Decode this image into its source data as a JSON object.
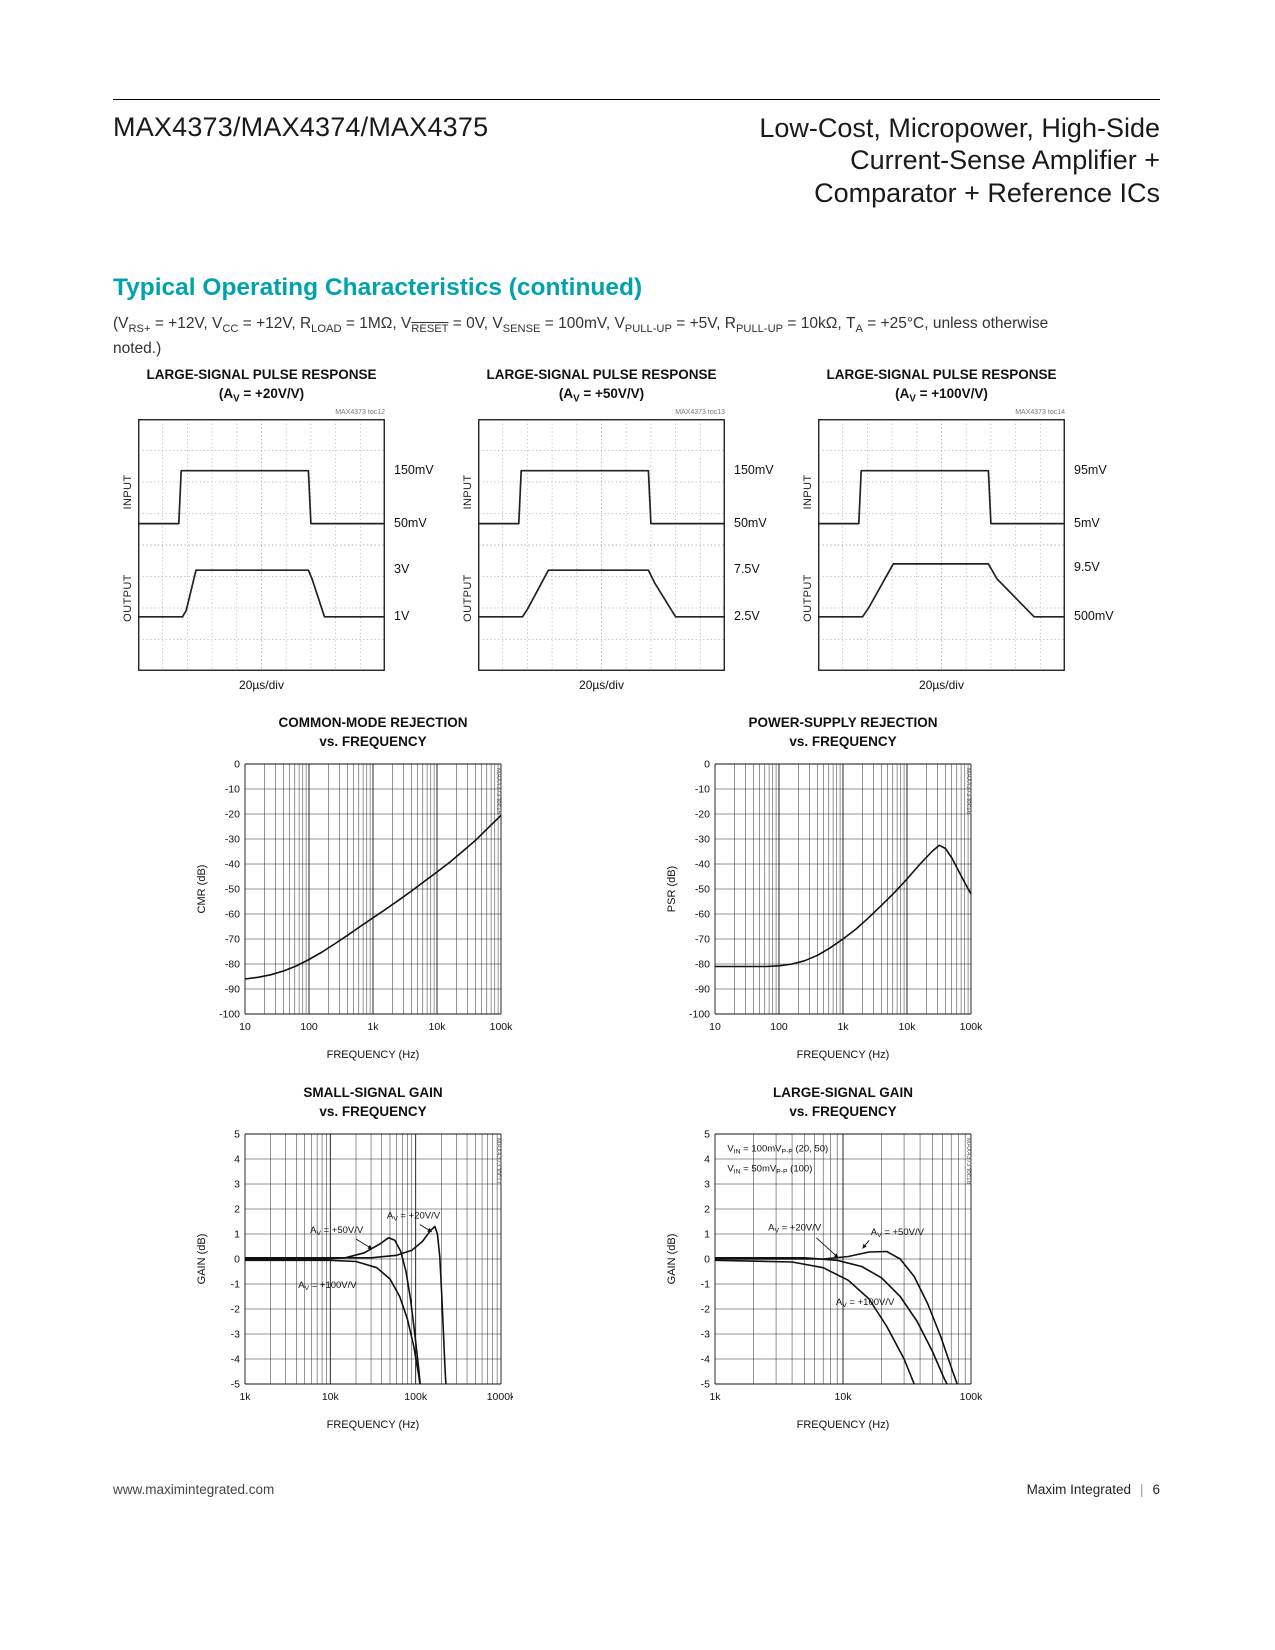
{
  "header": {
    "part": "MAX4373/MAX4374/MAX4375",
    "title_lines": [
      "Low-Cost, Micropower, High-Side",
      "Current-Sense Amplifier +",
      "Comparator + Reference ICs"
    ]
  },
  "section": {
    "heading": "Typical Operating Characteristics (continued)",
    "conditions": "(V|RS+| = +12V, V|CC| = +12V, R|LOAD| = 1MΩ, V~RESET~ = 0V, V|SENSE| = 100mV, V|PULL-UP| = +5V, R|PULL-UP| = 10kΩ, T|A| = +25°C, unless otherwise noted.)"
  },
  "footer": {
    "left": "www.maximintegrated.com",
    "brand": "Maxim Integrated",
    "divider": "|",
    "page": "6"
  },
  "chart_data": [
    {
      "type": "scope",
      "toc": "MAX4373 toc12",
      "title": "LARGE-SIGNAL PULSE RESPONSE",
      "subtitle": "(A|V| = +20V/V)",
      "x_div_label": "20µs/div",
      "divisions": {
        "x": 10,
        "y": 8
      },
      "trace_labels": [
        {
          "text": "INPUT",
          "y": 0.29
        },
        {
          "text": "OUTPUT",
          "y": 0.71
        }
      ],
      "right_labels": [
        {
          "text": "150mV",
          "y": 0.205
        },
        {
          "text": "50mV",
          "y": 0.415
        },
        {
          "text": "3V",
          "y": 0.6
        },
        {
          "text": "1V",
          "y": 0.785
        }
      ],
      "traces": [
        {
          "name": "input",
          "points": [
            [
              0,
              0.415
            ],
            [
              0.165,
              0.415
            ],
            [
              0.175,
              0.205
            ],
            [
              0.69,
              0.205
            ],
            [
              0.7,
              0.415
            ],
            [
              1,
              0.415
            ]
          ]
        },
        {
          "name": "output",
          "points": [
            [
              0,
              0.785
            ],
            [
              0.18,
              0.785
            ],
            [
              0.195,
              0.76
            ],
            [
              0.235,
              0.6
            ],
            [
              0.69,
              0.6
            ],
            [
              0.705,
              0.635
            ],
            [
              0.755,
              0.785
            ],
            [
              1,
              0.785
            ]
          ]
        }
      ]
    },
    {
      "type": "scope",
      "toc": "MAX4373 toc13",
      "title": "LARGE-SIGNAL PULSE RESPONSE",
      "subtitle": "(A|V| = +50V/V)",
      "x_div_label": "20µs/div",
      "divisions": {
        "x": 10,
        "y": 8
      },
      "trace_labels": [
        {
          "text": "INPUT",
          "y": 0.29
        },
        {
          "text": "OUTPUT",
          "y": 0.71
        }
      ],
      "right_labels": [
        {
          "text": "150mV",
          "y": 0.205
        },
        {
          "text": "50mV",
          "y": 0.415
        },
        {
          "text": "7.5V",
          "y": 0.6
        },
        {
          "text": "2.5V",
          "y": 0.785
        }
      ],
      "traces": [
        {
          "name": "input",
          "points": [
            [
              0,
              0.415
            ],
            [
              0.165,
              0.415
            ],
            [
              0.175,
              0.205
            ],
            [
              0.69,
              0.205
            ],
            [
              0.7,
              0.415
            ],
            [
              1,
              0.415
            ]
          ]
        },
        {
          "name": "output",
          "points": [
            [
              0,
              0.785
            ],
            [
              0.18,
              0.785
            ],
            [
              0.2,
              0.755
            ],
            [
              0.285,
              0.6
            ],
            [
              0.69,
              0.6
            ],
            [
              0.715,
              0.65
            ],
            [
              0.8,
              0.785
            ],
            [
              1,
              0.785
            ]
          ]
        }
      ]
    },
    {
      "type": "scope",
      "toc": "MAX4373 toc14",
      "title": "LARGE-SIGNAL PULSE RESPONSE",
      "subtitle": "(A|V| = +100V/V)",
      "x_div_label": "20µs/div",
      "divisions": {
        "x": 10,
        "y": 8
      },
      "trace_labels": [
        {
          "text": "INPUT",
          "y": 0.29
        },
        {
          "text": "OUTPUT",
          "y": 0.71
        }
      ],
      "right_labels": [
        {
          "text": "95mV",
          "y": 0.205
        },
        {
          "text": "5mV",
          "y": 0.415
        },
        {
          "text": "9.5V",
          "y": 0.59
        },
        {
          "text": "500mV",
          "y": 0.785
        }
      ],
      "traces": [
        {
          "name": "input",
          "points": [
            [
              0,
              0.415
            ],
            [
              0.165,
              0.415
            ],
            [
              0.175,
              0.205
            ],
            [
              0.69,
              0.205
            ],
            [
              0.7,
              0.415
            ],
            [
              1,
              0.415
            ]
          ]
        },
        {
          "name": "output",
          "points": [
            [
              0,
              0.785
            ],
            [
              0.18,
              0.785
            ],
            [
              0.205,
              0.75
            ],
            [
              0.305,
              0.575
            ],
            [
              0.69,
              0.575
            ],
            [
              0.725,
              0.635
            ],
            [
              0.875,
              0.785
            ],
            [
              1,
              0.785
            ]
          ]
        }
      ]
    },
    {
      "type": "line",
      "toc": "MAX4373 toc15",
      "title": "COMMON-MODE REJECTION",
      "subtitle": "vs. FREQUENCY",
      "xlabel": "FREQUENCY (Hz)",
      "ylabel": "CMR (dB)",
      "x_log_range": [
        1,
        5
      ],
      "x_ticks": [
        "10",
        "100",
        "1k",
        "10k",
        "100k"
      ],
      "ylim": [
        -100,
        0
      ],
      "y_step": 10,
      "y_ticks": [
        "0",
        "-10",
        "-20",
        "-30",
        "-40",
        "-50",
        "-60",
        "-70",
        "-80",
        "-90",
        "-100"
      ],
      "series": [
        {
          "name": "cmr",
          "points": [
            [
              10,
              -86
            ],
            [
              16,
              -85.3
            ],
            [
              25,
              -84.3
            ],
            [
              40,
              -82.8
            ],
            [
              63,
              -80.8
            ],
            [
              100,
              -78.2
            ],
            [
              160,
              -75.2
            ],
            [
              250,
              -72
            ],
            [
              400,
              -68.5
            ],
            [
              630,
              -65
            ],
            [
              1000,
              -61.5
            ],
            [
              1600,
              -58
            ],
            [
              2500,
              -54.5
            ],
            [
              4000,
              -50.8
            ],
            [
              6300,
              -47
            ],
            [
              10000,
              -43.2
            ],
            [
              16000,
              -39.2
            ],
            [
              25000,
              -35
            ],
            [
              40000,
              -30.5
            ],
            [
              63000,
              -25.5
            ],
            [
              100000,
              -20.5
            ]
          ]
        }
      ],
      "annotations": []
    },
    {
      "type": "line",
      "toc": "MAX4373 toc16",
      "title": "POWER-SUPPLY REJECTION",
      "subtitle": "vs. FREQUENCY",
      "xlabel": "FREQUENCY (Hz)",
      "ylabel": "PSR (dB)",
      "x_log_range": [
        1,
        5
      ],
      "x_ticks": [
        "10",
        "100",
        "1k",
        "10k",
        "100k"
      ],
      "ylim": [
        -100,
        0
      ],
      "y_step": 10,
      "y_ticks": [
        "0",
        "-10",
        "-20",
        "-30",
        "-40",
        "-50",
        "-60",
        "-70",
        "-80",
        "-90",
        "-100"
      ],
      "series": [
        {
          "name": "psr",
          "points": [
            [
              10,
              -81
            ],
            [
              25,
              -81
            ],
            [
              63,
              -81
            ],
            [
              100,
              -80.7
            ],
            [
              160,
              -80
            ],
            [
              250,
              -78.7
            ],
            [
              400,
              -76.5
            ],
            [
              630,
              -73.5
            ],
            [
              1000,
              -70
            ],
            [
              1600,
              -66
            ],
            [
              2500,
              -61.5
            ],
            [
              4000,
              -56.5
            ],
            [
              6300,
              -51.5
            ],
            [
              10000,
              -46
            ],
            [
              16000,
              -40
            ],
            [
              25000,
              -34.8
            ],
            [
              32000,
              -32.5
            ],
            [
              40000,
              -33.8
            ],
            [
              50000,
              -37.5
            ],
            [
              63000,
              -42.5
            ],
            [
              80000,
              -47.5
            ],
            [
              100000,
              -52
            ]
          ]
        }
      ],
      "annotations": []
    },
    {
      "type": "line",
      "toc": "MAX4373 toc17",
      "title": "SMALL-SIGNAL GAIN",
      "subtitle": "vs. FREQUENCY",
      "xlabel": "FREQUENCY (Hz)",
      "ylabel": "GAIN (dB)",
      "x_log_range": [
        3,
        6
      ],
      "x_ticks": [
        "1k",
        "10k",
        "100k",
        "1000k"
      ],
      "ylim": [
        -5,
        5
      ],
      "y_step": 1,
      "y_ticks": [
        "5",
        "4",
        "3",
        "2",
        "1",
        "0",
        "-1",
        "-2",
        "-3",
        "-4",
        "-5"
      ],
      "series": [
        {
          "name": "av20",
          "points": [
            [
              1000,
              0.05
            ],
            [
              10000,
              0.05
            ],
            [
              30000,
              0.05
            ],
            [
              60000,
              0.15
            ],
            [
              90000,
              0.35
            ],
            [
              120000,
              0.7
            ],
            [
              150000,
              1.15
            ],
            [
              168000,
              1.3
            ],
            [
              180000,
              1.0
            ],
            [
              192000,
              0.1
            ],
            [
              202000,
              -1.4
            ],
            [
              212000,
              -3
            ],
            [
              220000,
              -4.3
            ],
            [
              226000,
              -5
            ]
          ]
        },
        {
          "name": "av50",
          "points": [
            [
              1000,
              0
            ],
            [
              8000,
              0
            ],
            [
              15000,
              0.05
            ],
            [
              25000,
              0.25
            ],
            [
              38000,
              0.6
            ],
            [
              48000,
              0.85
            ],
            [
              57000,
              0.75
            ],
            [
              67000,
              0.3
            ],
            [
              77000,
              -0.5
            ],
            [
              87000,
              -1.6
            ],
            [
              97000,
              -2.9
            ],
            [
              107000,
              -4.2
            ],
            [
              113000,
              -5
            ]
          ]
        },
        {
          "name": "av100",
          "points": [
            [
              1000,
              -0.05
            ],
            [
              10000,
              -0.05
            ],
            [
              20000,
              -0.1
            ],
            [
              35000,
              -0.35
            ],
            [
              50000,
              -0.8
            ],
            [
              65000,
              -1.5
            ],
            [
              80000,
              -2.4
            ],
            [
              95000,
              -3.5
            ],
            [
              108000,
              -4.6
            ],
            [
              112000,
              -5
            ]
          ]
        }
      ],
      "annotations": [
        {
          "text": "A|V| = +50V/V",
          "x": 5800,
          "y": 1.05,
          "arrow": [
            [
              20000,
              0.8
            ],
            [
              31000,
              0.4
            ]
          ]
        },
        {
          "text": "A|V| = +20V/V",
          "x": 46000,
          "y": 1.62,
          "arrow": [
            [
              112000,
              1.38
            ],
            [
              155000,
              1.08
            ]
          ]
        },
        {
          "text": "A|V| = +100V/V",
          "x": 4200,
          "y": -1.15
        }
      ]
    },
    {
      "type": "line",
      "toc": "MAX4373 toc18",
      "title": "LARGE-SIGNAL GAIN",
      "subtitle": "vs. FREQUENCY",
      "xlabel": "FREQUENCY (Hz)",
      "ylabel": "GAIN (dB)",
      "x_log_range": [
        3,
        5
      ],
      "x_ticks": [
        "1k",
        "10k",
        "100k"
      ],
      "ylim": [
        -5,
        5
      ],
      "y_step": 1,
      "y_ticks": [
        "5",
        "4",
        "3",
        "2",
        "1",
        "0",
        "-1",
        "-2",
        "-3",
        "-4",
        "-5"
      ],
      "series": [
        {
          "name": "av20",
          "points": [
            [
              1000,
              0.05
            ],
            [
              5000,
              0.05
            ],
            [
              9000,
              -0.05
            ],
            [
              14000,
              -0.3
            ],
            [
              20000,
              -0.75
            ],
            [
              28000,
              -1.5
            ],
            [
              38000,
              -2.5
            ],
            [
              50000,
              -3.7
            ],
            [
              62000,
              -4.8
            ],
            [
              65000,
              -5
            ]
          ]
        },
        {
          "name": "av50",
          "points": [
            [
              1000,
              0
            ],
            [
              7000,
              0
            ],
            [
              11000,
              0.1
            ],
            [
              16000,
              0.28
            ],
            [
              22000,
              0.3
            ],
            [
              28000,
              0
            ],
            [
              36000,
              -0.7
            ],
            [
              46000,
              -1.8
            ],
            [
              58000,
              -3.1
            ],
            [
              72000,
              -4.5
            ],
            [
              78000,
              -5
            ]
          ]
        },
        {
          "name": "av100",
          "points": [
            [
              1000,
              -0.05
            ],
            [
              4000,
              -0.12
            ],
            [
              7000,
              -0.35
            ],
            [
              11000,
              -0.85
            ],
            [
              16000,
              -1.6
            ],
            [
              22000,
              -2.7
            ],
            [
              30000,
              -4
            ],
            [
              36000,
              -5
            ]
          ]
        }
      ],
      "annotations": [
        {
          "text": "V|IN| = 100mV|P-P| (20, 50)",
          "x": 1250,
          "y": 4.3
        },
        {
          "text": "V|IN| = 50mV|P-P| (100)",
          "x": 1250,
          "y": 3.5
        },
        {
          "text": "A|V| = +20V/V",
          "x": 2600,
          "y": 1.15,
          "arrow": [
            [
              6200,
              0.85
            ],
            [
              9200,
              0.05
            ]
          ]
        },
        {
          "text": "A|V| = +50V/V",
          "x": 16500,
          "y": 0.95,
          "arrow": [
            [
              16000,
              0.75
            ],
            [
              14200,
              0.42
            ]
          ]
        },
        {
          "text": "A|V| = +100V/V",
          "x": 8800,
          "y": -1.85
        }
      ]
    }
  ]
}
